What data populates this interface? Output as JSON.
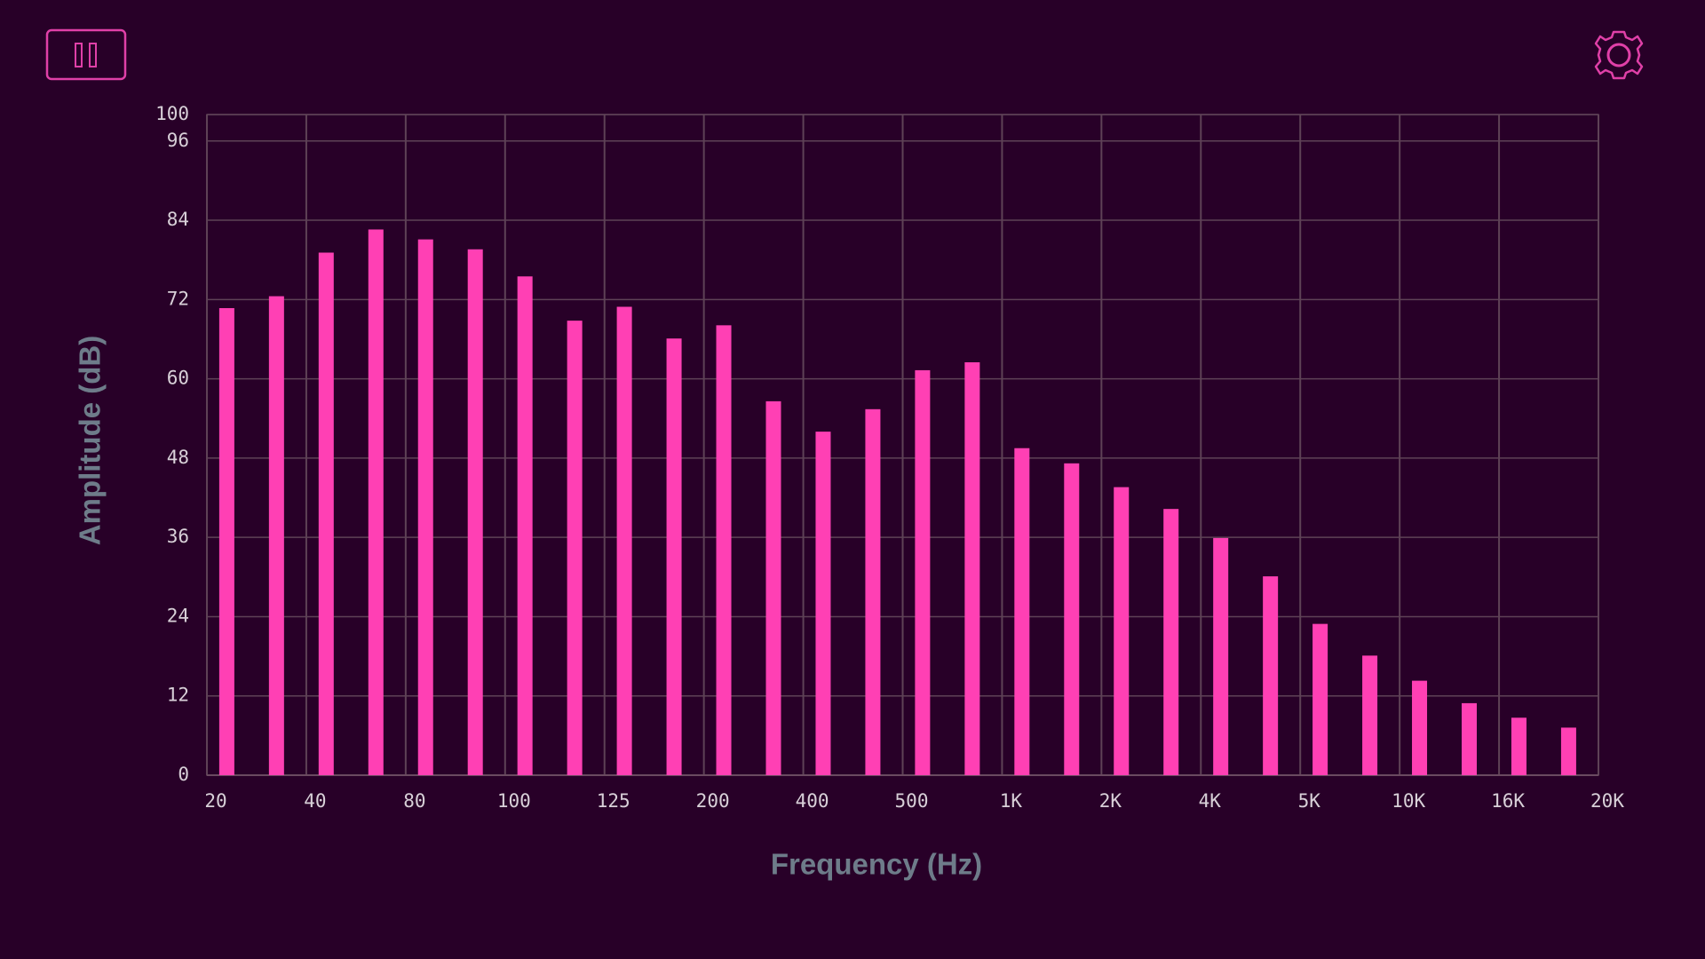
{
  "chart_data": {
    "type": "bar",
    "x_label": "Frequency (Hz)",
    "y_label": "Amplitude (dB)",
    "x_tick_labels": [
      "20",
      "40",
      "80",
      "100",
      "125",
      "200",
      "400",
      "500",
      "1K",
      "2K",
      "4K",
      "5K",
      "10K",
      "16K",
      "20K"
    ],
    "values": [
      70.7,
      72.5,
      79.1,
      82.6,
      81.1,
      79.6,
      75.5,
      68.8,
      70.9,
      66.1,
      68.1,
      56.6,
      52.0,
      55.4,
      61.3,
      62.5,
      49.5,
      47.2,
      43.6,
      40.3,
      35.9,
      30.1,
      22.9,
      18.1,
      14.3,
      10.9,
      8.7,
      7.2
    ],
    "color": "#ff40b4",
    "ylim": [
      0,
      100
    ],
    "yticks": [
      0,
      12,
      24,
      36,
      48,
      60,
      72,
      84,
      96,
      100
    ],
    "grid": true
  }
}
